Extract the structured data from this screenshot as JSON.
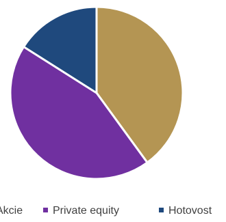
{
  "chart_data": {
    "type": "pie",
    "title": "",
    "legend_position": "bottom",
    "series": [
      {
        "name": "Akcie",
        "value": 40,
        "color": "#B49553"
      },
      {
        "name": "Private equity",
        "value": 44,
        "color": "#7030A0"
      },
      {
        "name": "Hotovost",
        "value": 16,
        "color": "#1F497D"
      }
    ]
  }
}
